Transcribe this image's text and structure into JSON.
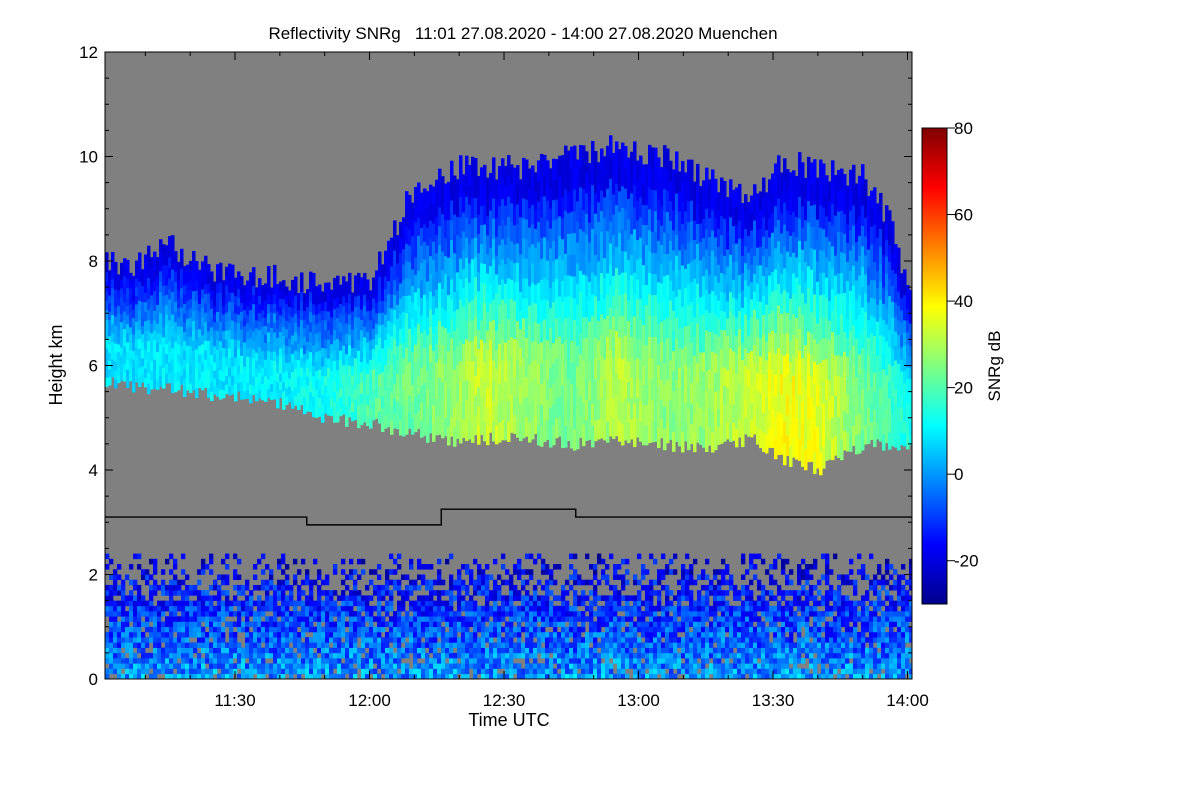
{
  "chart_data": {
    "type": "heatmap",
    "title": "Reflectivity SNRg   11:01 27.08.2020 - 14:00 27.08.2020 Muenchen",
    "xlabel": "Time UTC",
    "ylabel": "Height km",
    "x_unit": "minutes_utc",
    "xlim": [
      661,
      841
    ],
    "x_ticks": [
      {
        "value": 690,
        "label": "11:30"
      },
      {
        "value": 720,
        "label": "12:00"
      },
      {
        "value": 750,
        "label": "12:30"
      },
      {
        "value": 780,
        "label": "13:00"
      },
      {
        "value": 810,
        "label": "13:30"
      },
      {
        "value": 840,
        "label": "14:00"
      }
    ],
    "ylim": [
      0,
      12
    ],
    "y_ticks": [
      0,
      2,
      4,
      6,
      8,
      10,
      12
    ],
    "colorbar": {
      "label": "SNRg dB",
      "range": [
        -30,
        80
      ],
      "ticks": [
        -20,
        0,
        20,
        40,
        60,
        80
      ],
      "colormap": [
        "#00008b",
        "#0000ff",
        "#0080ff",
        "#00ffff",
        "#80ff80",
        "#ffff00",
        "#ff8000",
        "#ff0000",
        "#800000"
      ]
    },
    "background_color": "#808080",
    "cloud_layer": {
      "name": "",
      "time": [
        661,
        667,
        675,
        685,
        700,
        710,
        720,
        730,
        740,
        745,
        755,
        765,
        775,
        785,
        795,
        805,
        812,
        820,
        830,
        836,
        841
      ],
      "base_km": [
        5.7,
        5.6,
        5.55,
        5.45,
        5.3,
        5.0,
        4.9,
        4.7,
        4.5,
        4.6,
        4.6,
        4.5,
        4.6,
        4.5,
        4.4,
        4.6,
        4.2,
        4.0,
        4.5,
        4.5,
        4.4
      ],
      "top_km": [
        8.0,
        7.9,
        8.3,
        7.8,
        7.7,
        7.5,
        7.6,
        9.5,
        9.8,
        9.8,
        9.8,
        10.0,
        10.2,
        10.0,
        9.6,
        9.2,
        9.9,
        9.8,
        9.6,
        8.7,
        7.2
      ],
      "peak_snr_db": [
        10,
        10,
        11,
        11,
        12,
        15,
        22,
        25,
        30,
        35,
        30,
        25,
        33,
        28,
        30,
        35,
        40,
        38,
        25,
        20,
        15
      ]
    },
    "noise_layer": {
      "name": "",
      "top_km": 2.4,
      "peak_snr_db": 0
    },
    "reference_line": {
      "name": "",
      "color": "#000000",
      "points": [
        [
          661,
          3.1
        ],
        [
          706,
          3.1
        ],
        [
          706,
          2.95
        ],
        [
          736,
          2.95
        ],
        [
          736,
          3.25
        ],
        [
          766,
          3.25
        ],
        [
          766,
          3.1
        ],
        [
          841,
          3.1
        ]
      ]
    }
  }
}
